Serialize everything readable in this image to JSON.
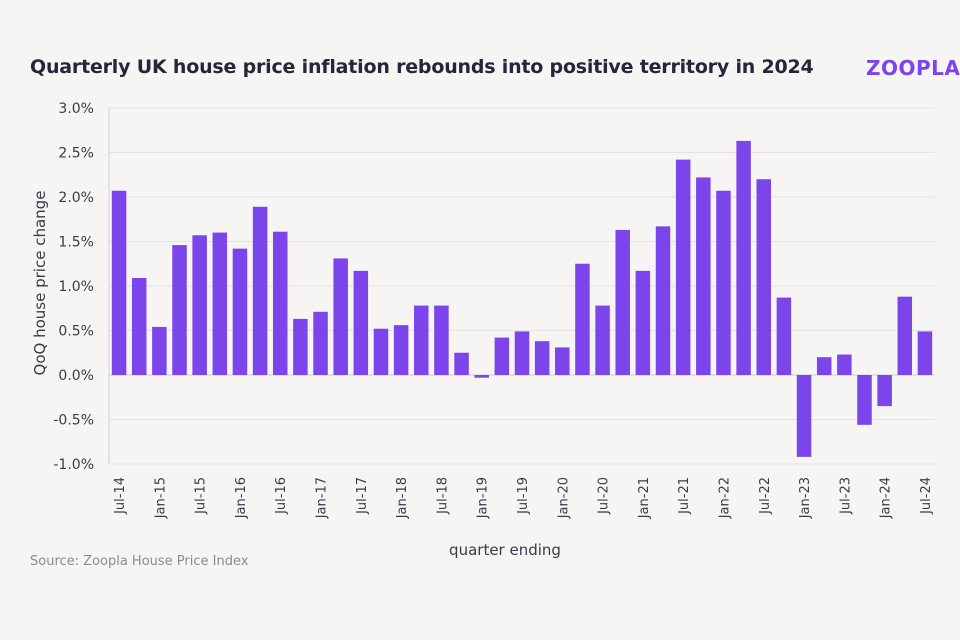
{
  "title": "Quarterly UK house price inflation rebounds into positive territory in 2024",
  "logo": "ZOOPLA",
  "source": "Source: Zoopla House Price Index",
  "colors": {
    "bar": "#7c45ec",
    "background": "#f6f5f3",
    "grid": "#e4e3e0"
  },
  "chart_data": {
    "type": "bar",
    "title": "Quarterly UK house price inflation rebounds into positive territory in 2024",
    "xlabel": "quarter ending",
    "ylabel": "QoQ house price change",
    "ylim": [
      -1.0,
      3.0
    ],
    "yticks": [
      -1.0,
      -0.5,
      0.0,
      0.5,
      1.0,
      1.5,
      2.0,
      2.5,
      3.0
    ],
    "ytick_labels": [
      "-1.0%",
      "-0.5%",
      "0.0%",
      "0.5%",
      "1.0%",
      "1.5%",
      "2.0%",
      "2.5%",
      "3.0%"
    ],
    "grid": true,
    "categories": [
      "Jul-14",
      "Oct-14",
      "Jan-15",
      "Apr-15",
      "Jul-15",
      "Oct-15",
      "Jan-16",
      "Apr-16",
      "Jul-16",
      "Oct-16",
      "Jan-17",
      "Apr-17",
      "Jul-17",
      "Oct-17",
      "Jan-18",
      "Apr-18",
      "Jul-18",
      "Oct-18",
      "Jan-19",
      "Apr-19",
      "Jul-19",
      "Oct-19",
      "Jan-20",
      "Apr-20",
      "Jul-20",
      "Oct-20",
      "Jan-21",
      "Apr-21",
      "Jul-21",
      "Oct-21",
      "Jan-22",
      "Apr-22",
      "Jul-22",
      "Oct-22",
      "Jan-23",
      "Apr-23",
      "Jul-23",
      "Oct-23",
      "Jan-24",
      "Apr-24",
      "Jul-24"
    ],
    "xtick_labels": [
      "Jul-14",
      "Jan-15",
      "Jul-15",
      "Jan-16",
      "Jul-16",
      "Jan-17",
      "Jul-17",
      "Jan-18",
      "Jul-18",
      "Jan-19",
      "Jul-19",
      "Jan-20",
      "Jul-20",
      "Jan-21",
      "Jul-21",
      "Jan-22",
      "Jul-22",
      "Jan-23",
      "Jul-23",
      "Jan-24",
      "Jul-24"
    ],
    "values": [
      2.07,
      1.09,
      0.54,
      1.46,
      1.57,
      1.6,
      1.42,
      1.89,
      1.61,
      0.63,
      0.71,
      1.31,
      1.17,
      0.52,
      0.56,
      0.78,
      0.78,
      0.25,
      -0.03,
      0.42,
      0.49,
      0.38,
      0.31,
      1.25,
      0.78,
      1.63,
      1.17,
      1.67,
      2.42,
      2.22,
      2.07,
      2.63,
      2.2,
      0.87,
      -0.92,
      0.2,
      0.23,
      -0.56,
      -0.35,
      0.88,
      0.49
    ]
  }
}
